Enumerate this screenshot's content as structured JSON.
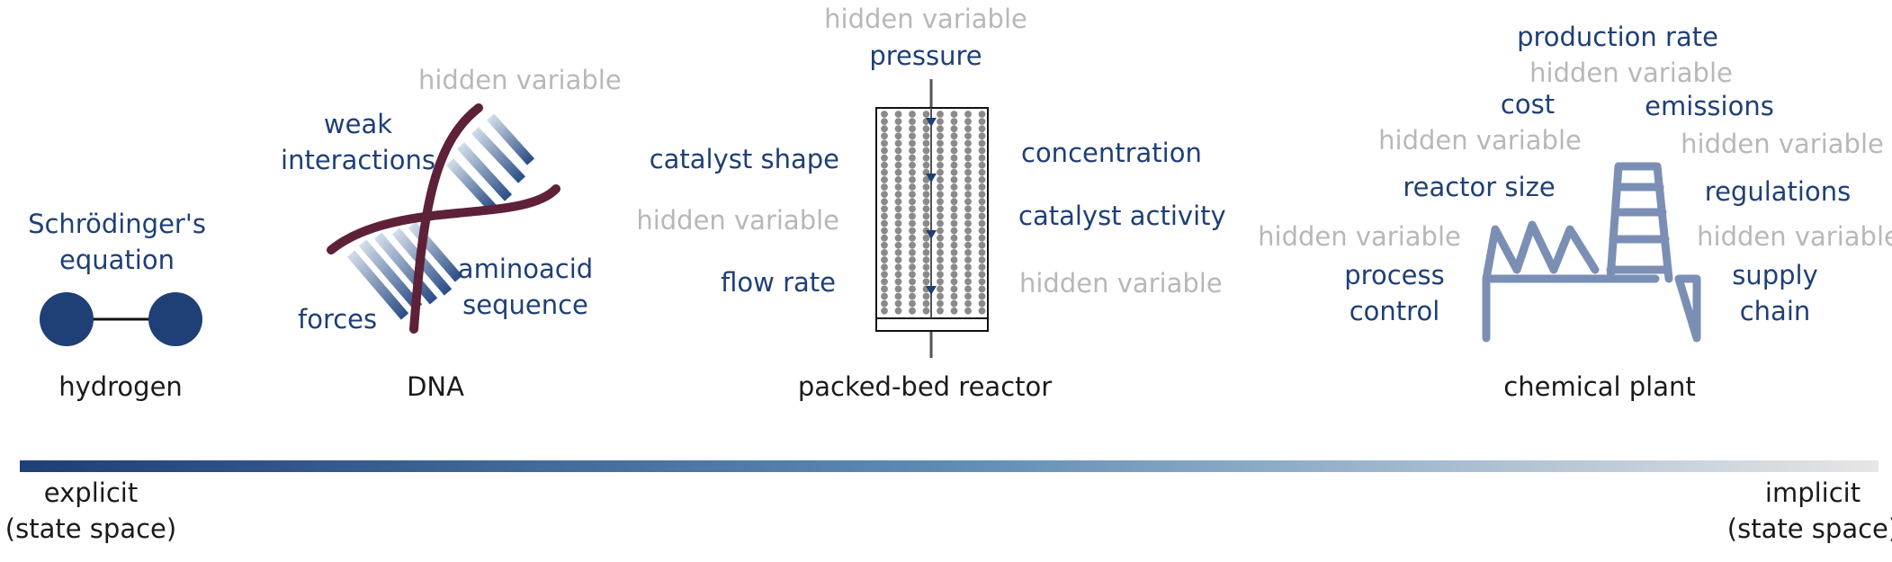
{
  "sections": {
    "hydrogen": {
      "caption": "hydrogen",
      "labels": {
        "equation": "Schrödinger's\nequation"
      }
    },
    "dna": {
      "caption": "DNA",
      "labels": {
        "hidden": "hidden variable",
        "weak": "weak\ninteractions",
        "aminoacid": "aminoacid\nsequence",
        "forces": "forces"
      }
    },
    "reactor": {
      "caption": "packed-bed reactor",
      "labels": {
        "hidden_top": "hidden variable",
        "pressure": "pressure",
        "catalyst_shape": "catalyst shape",
        "hidden_left": "hidden variable",
        "flow_rate": "flow rate",
        "concentration": "concentration",
        "catalyst_activity": "catalyst activity",
        "hidden_right": "hidden variable"
      }
    },
    "plant": {
      "caption": "chemical plant",
      "labels": {
        "production_rate": "production rate",
        "hidden_1": "hidden variable",
        "cost": "cost",
        "emissions": "emissions",
        "hidden_2": "hidden variable",
        "hidden_3": "hidden variable",
        "reactor_size": "reactor size",
        "regulations": "regulations",
        "hidden_4": "hidden variable",
        "hidden_5": "hidden variable",
        "process_control": "process\ncontrol",
        "supply_chain": "supply\nchain"
      }
    }
  },
  "scale": {
    "left_label": "explicit\n(state space)",
    "right_label": "implicit\n(state space)",
    "gradient": [
      "#1f3f77",
      "#5e8cb5",
      "#e6e6e6"
    ]
  },
  "colors": {
    "dark_blue": "#1f3f77",
    "gray": "#b8b8b8",
    "maroon": "#5e2139",
    "steel": "#7b8fb5"
  }
}
